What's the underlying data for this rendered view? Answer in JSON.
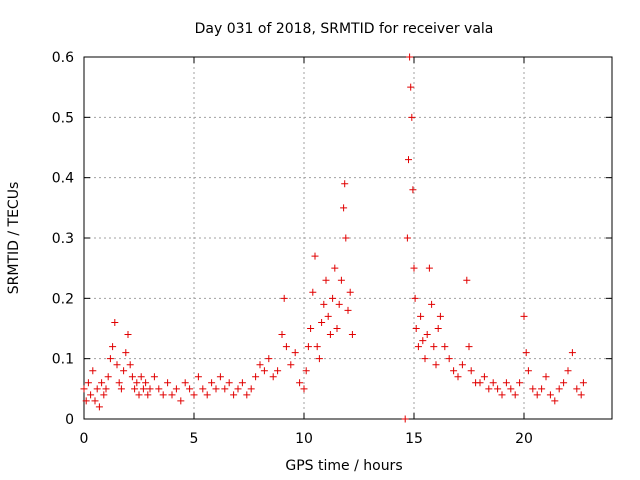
{
  "chart_data": {
    "type": "scatter",
    "title": "Day 031 of 2018, SRMTID for receiver vala",
    "xlabel": "GPS time / hours",
    "ylabel": "SRMTID / TECUs",
    "xlim": [
      0,
      24
    ],
    "ylim": [
      0,
      0.6
    ],
    "xticks": [
      0,
      5,
      10,
      15,
      20
    ],
    "xtick_labels": [
      "0",
      "5",
      "10",
      "15",
      "20"
    ],
    "yticks": [
      0,
      0.1,
      0.2,
      0.3,
      0.4,
      0.5,
      0.6
    ],
    "ytick_labels": [
      "0",
      "0.1",
      "0.2",
      "0.3",
      "0.4",
      "0.5",
      "0.6"
    ],
    "grid": true,
    "marker": "+",
    "color": "#e00000",
    "series": [
      {
        "name": "SRMTID",
        "points": [
          [
            0.0,
            0.05
          ],
          [
            0.1,
            0.03
          ],
          [
            0.2,
            0.06
          ],
          [
            0.3,
            0.04
          ],
          [
            0.4,
            0.08
          ],
          [
            0.5,
            0.03
          ],
          [
            0.6,
            0.05
          ],
          [
            0.7,
            0.02
          ],
          [
            0.8,
            0.06
          ],
          [
            0.9,
            0.04
          ],
          [
            1.0,
            0.05
          ],
          [
            1.1,
            0.07
          ],
          [
            1.2,
            0.1
          ],
          [
            1.3,
            0.12
          ],
          [
            1.4,
            0.16
          ],
          [
            1.5,
            0.09
          ],
          [
            1.6,
            0.06
          ],
          [
            1.7,
            0.05
          ],
          [
            1.8,
            0.08
          ],
          [
            1.9,
            0.11
          ],
          [
            2.0,
            0.14
          ],
          [
            2.1,
            0.09
          ],
          [
            2.2,
            0.07
          ],
          [
            2.3,
            0.05
          ],
          [
            2.4,
            0.06
          ],
          [
            2.5,
            0.04
          ],
          [
            2.6,
            0.07
          ],
          [
            2.7,
            0.05
          ],
          [
            2.8,
            0.06
          ],
          [
            2.9,
            0.04
          ],
          [
            3.0,
            0.05
          ],
          [
            3.2,
            0.07
          ],
          [
            3.4,
            0.05
          ],
          [
            3.6,
            0.04
          ],
          [
            3.8,
            0.06
          ],
          [
            4.0,
            0.04
          ],
          [
            4.2,
            0.05
          ],
          [
            4.4,
            0.03
          ],
          [
            4.6,
            0.06
          ],
          [
            4.8,
            0.05
          ],
          [
            5.0,
            0.04
          ],
          [
            5.2,
            0.07
          ],
          [
            5.4,
            0.05
          ],
          [
            5.6,
            0.04
          ],
          [
            5.8,
            0.06
          ],
          [
            6.0,
            0.05
          ],
          [
            6.2,
            0.07
          ],
          [
            6.4,
            0.05
          ],
          [
            6.6,
            0.06
          ],
          [
            6.8,
            0.04
          ],
          [
            7.0,
            0.05
          ],
          [
            7.2,
            0.06
          ],
          [
            7.4,
            0.04
          ],
          [
            7.6,
            0.05
          ],
          [
            7.8,
            0.07
          ],
          [
            8.0,
            0.09
          ],
          [
            8.2,
            0.08
          ],
          [
            8.4,
            0.1
          ],
          [
            8.6,
            0.07
          ],
          [
            8.8,
            0.08
          ],
          [
            9.0,
            0.14
          ],
          [
            9.1,
            0.2
          ],
          [
            9.2,
            0.12
          ],
          [
            9.4,
            0.09
          ],
          [
            9.6,
            0.11
          ],
          [
            9.8,
            0.06
          ],
          [
            10.0,
            0.05
          ],
          [
            10.1,
            0.08
          ],
          [
            10.2,
            0.12
          ],
          [
            10.3,
            0.15
          ],
          [
            10.4,
            0.21
          ],
          [
            10.5,
            0.27
          ],
          [
            10.6,
            0.12
          ],
          [
            10.7,
            0.1
          ],
          [
            10.8,
            0.16
          ],
          [
            10.9,
            0.19
          ],
          [
            11.0,
            0.23
          ],
          [
            11.1,
            0.17
          ],
          [
            11.2,
            0.14
          ],
          [
            11.3,
            0.2
          ],
          [
            11.4,
            0.25
          ],
          [
            11.5,
            0.15
          ],
          [
            11.6,
            0.19
          ],
          [
            11.7,
            0.23
          ],
          [
            11.8,
            0.35
          ],
          [
            11.85,
            0.39
          ],
          [
            11.9,
            0.3
          ],
          [
            12.0,
            0.18
          ],
          [
            12.1,
            0.21
          ],
          [
            12.2,
            0.14
          ],
          [
            14.6,
            0.0
          ],
          [
            14.7,
            0.3
          ],
          [
            14.75,
            0.43
          ],
          [
            14.8,
            0.6
          ],
          [
            14.85,
            0.55
          ],
          [
            14.9,
            0.5
          ],
          [
            14.95,
            0.38
          ],
          [
            15.0,
            0.25
          ],
          [
            15.05,
            0.2
          ],
          [
            15.1,
            0.15
          ],
          [
            15.2,
            0.12
          ],
          [
            15.3,
            0.17
          ],
          [
            15.4,
            0.13
          ],
          [
            15.5,
            0.1
          ],
          [
            15.6,
            0.14
          ],
          [
            15.7,
            0.25
          ],
          [
            15.8,
            0.19
          ],
          [
            15.9,
            0.12
          ],
          [
            16.0,
            0.09
          ],
          [
            16.1,
            0.15
          ],
          [
            16.2,
            0.17
          ],
          [
            16.4,
            0.12
          ],
          [
            16.6,
            0.1
          ],
          [
            16.8,
            0.08
          ],
          [
            17.0,
            0.07
          ],
          [
            17.2,
            0.09
          ],
          [
            17.4,
            0.23
          ],
          [
            17.5,
            0.12
          ],
          [
            17.6,
            0.08
          ],
          [
            17.8,
            0.06
          ],
          [
            18.0,
            0.06
          ],
          [
            18.2,
            0.07
          ],
          [
            18.4,
            0.05
          ],
          [
            18.6,
            0.06
          ],
          [
            18.8,
            0.05
          ],
          [
            19.0,
            0.04
          ],
          [
            19.2,
            0.06
          ],
          [
            19.4,
            0.05
          ],
          [
            19.6,
            0.04
          ],
          [
            19.8,
            0.06
          ],
          [
            20.0,
            0.17
          ],
          [
            20.1,
            0.11
          ],
          [
            20.2,
            0.08
          ],
          [
            20.4,
            0.05
          ],
          [
            20.6,
            0.04
          ],
          [
            20.8,
            0.05
          ],
          [
            21.0,
            0.07
          ],
          [
            21.2,
            0.04
          ],
          [
            21.4,
            0.03
          ],
          [
            21.6,
            0.05
          ],
          [
            21.8,
            0.06
          ],
          [
            22.0,
            0.08
          ],
          [
            22.2,
            0.11
          ],
          [
            22.4,
            0.05
          ],
          [
            22.6,
            0.04
          ],
          [
            22.7,
            0.06
          ]
        ]
      }
    ]
  }
}
